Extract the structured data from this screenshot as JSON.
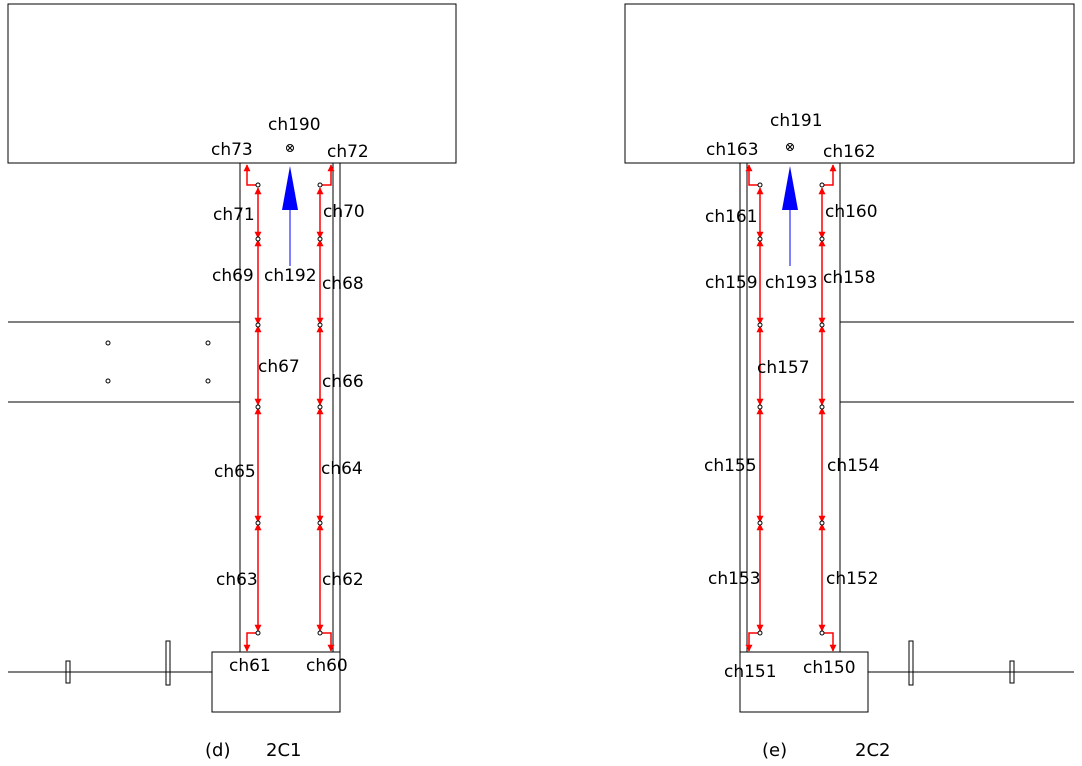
{
  "figures": [
    {
      "caption_tag": "(d)",
      "caption_name": "2C1",
      "channels": {
        "top_center": "ch190",
        "top_left": "ch73",
        "top_right": "ch72",
        "left_1": "ch71",
        "right_1": "ch70",
        "left_2": "ch69",
        "center_2": "ch192",
        "right_2": "ch68",
        "left_3": "ch67",
        "right_3": "ch66",
        "left_4": "ch65",
        "right_4": "ch64",
        "left_5": "ch63",
        "right_5": "ch62",
        "bottom_left": "ch61",
        "bottom_right": "ch60"
      }
    },
    {
      "caption_tag": "(e)",
      "caption_name": "2C2",
      "channels": {
        "top_center": "ch191",
        "top_left": "ch163",
        "top_right": "ch162",
        "left_1": "ch161",
        "right_1": "ch160",
        "left_2": "ch159",
        "center_2": "ch193",
        "right_2": "ch158",
        "left_3": "ch157",
        "left_4": "ch155",
        "right_4": "ch154",
        "left_5": "ch153",
        "right_5": "ch152",
        "bottom_left": "ch151",
        "bottom_right": "ch150"
      }
    }
  ],
  "colors": {
    "gauge": "#ff0000",
    "displacement": "#0000ff",
    "line": "#000000"
  }
}
